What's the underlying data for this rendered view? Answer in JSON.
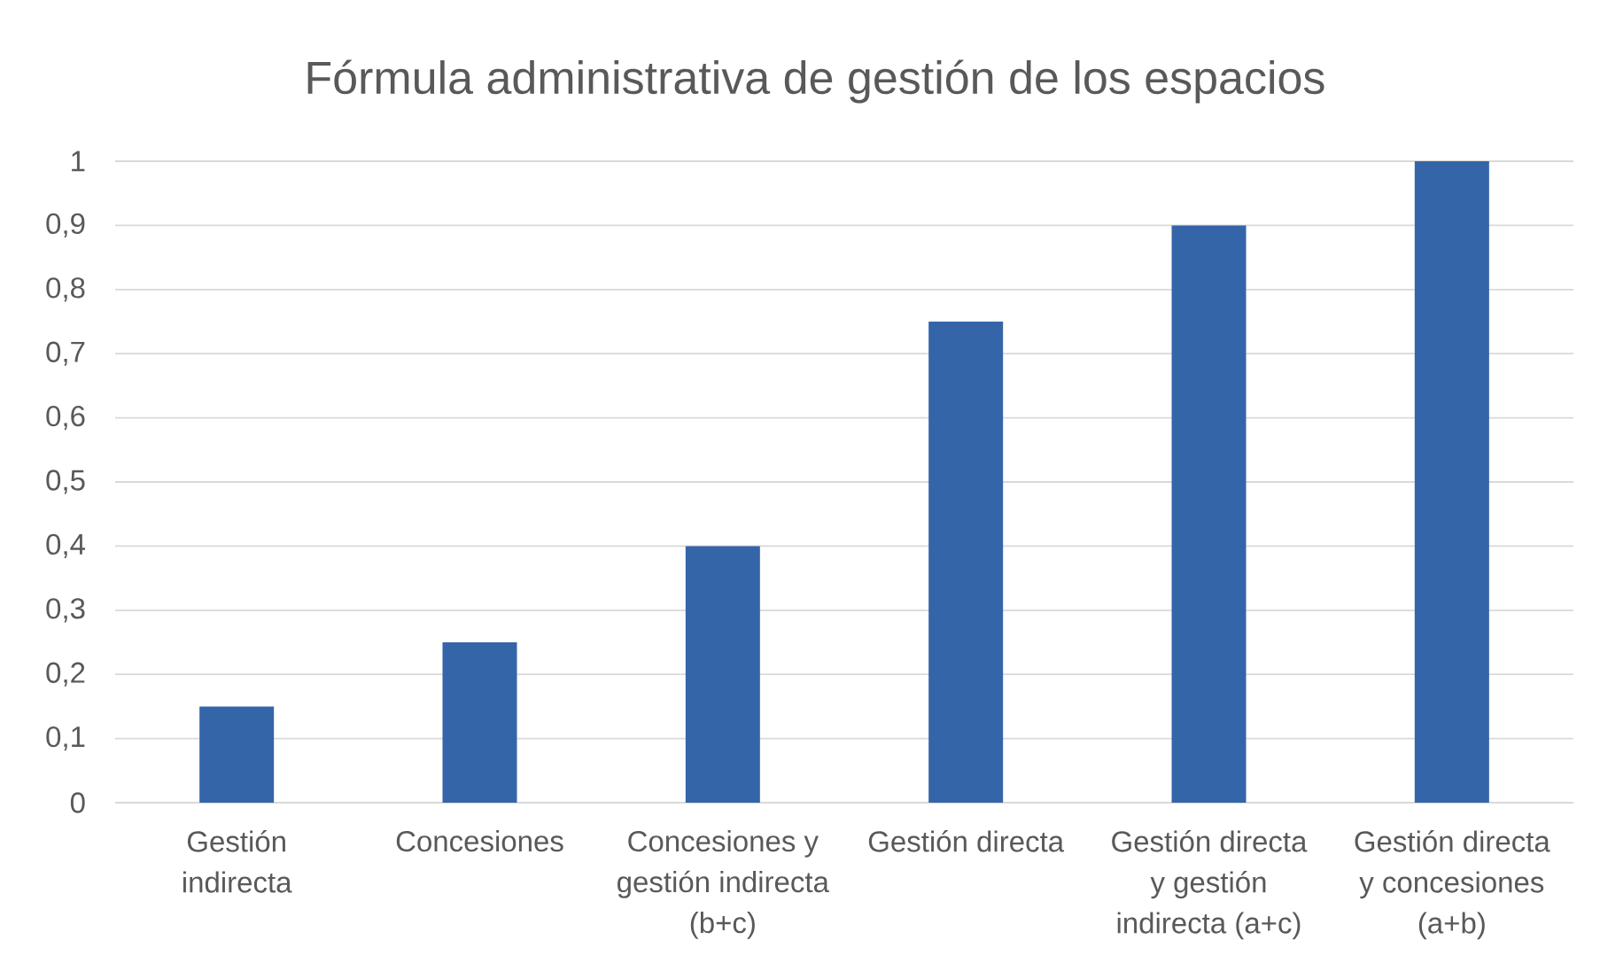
{
  "chart_data": {
    "type": "bar",
    "title": "Fórmula administrativa de gestión de los espacios",
    "categories": [
      "Gestión indirecta",
      "Concesiones",
      "Concesiones y gestión indirecta (b+c)",
      "Gestión directa",
      "Gestión directa y gestión indirecta (a+c)",
      "Gestión directa y concesiones (a+b)"
    ],
    "values": [
      0.15,
      0.25,
      0.4,
      0.75,
      0.9,
      1.0
    ],
    "color": "#3565a9",
    "ylim": [
      0,
      1
    ],
    "yticks": [
      0,
      {
        "value": 0.1,
        "label": "0,1"
      },
      {
        "value": 0.2,
        "label": "0,2"
      },
      {
        "value": 0.3,
        "label": "0,3"
      },
      {
        "value": 0.4,
        "label": "0,4"
      },
      {
        "value": 0.5,
        "label": "0,5"
      },
      {
        "value": 0.6,
        "label": "0,6"
      },
      {
        "value": 0.7,
        "label": "0,7"
      },
      {
        "value": 0.8,
        "label": "0,8"
      },
      {
        "value": 0.9,
        "label": "0,9"
      },
      1
    ],
    "grid": "y"
  }
}
